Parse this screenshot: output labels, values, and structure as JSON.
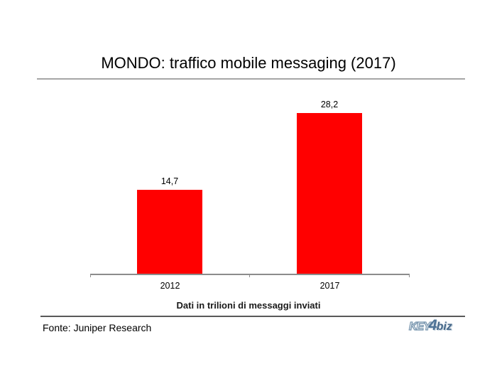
{
  "title": "MONDO: traffico mobile messaging (2017)",
  "chart_data": {
    "type": "bar",
    "title": "MONDO: traffico mobile messaging (2017)",
    "categories": [
      "2012",
      "2017"
    ],
    "values": [
      14.7,
      28.2
    ],
    "value_labels": [
      "14,7",
      "28,2"
    ],
    "xlabel": "",
    "ylabel": "",
    "ylim": [
      0,
      30
    ],
    "grid": false,
    "legend": false,
    "bar_color": "#ff0000",
    "note": "Dati in trilioni di messaggi inviati"
  },
  "caption": "Dati in trilioni di messaggi inviati",
  "footer": {
    "source": "Fonte: Juniper Research",
    "logo": {
      "key": "KEY",
      "four": "4",
      "biz": "biz"
    }
  },
  "colors": {
    "bar": "#ff0000",
    "axis": "#8c8c8c",
    "title_rule": "#a6a6a6",
    "footer_rule": "#595959",
    "logo_blue": "#4d7296"
  }
}
